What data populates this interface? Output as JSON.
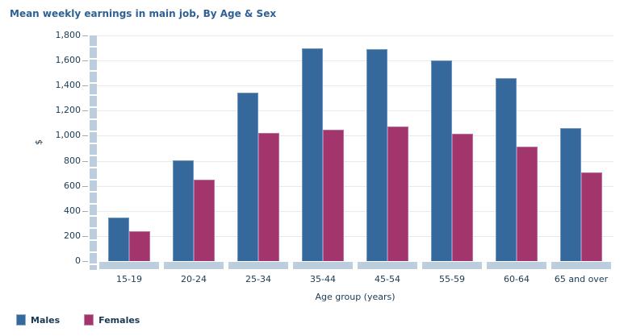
{
  "title": "Mean weekly earnings in main job, By Age & Sex",
  "colors": {
    "male_bar": "#35689b",
    "female_bar": "#a2366c",
    "axis_band": "#bccdde",
    "gridline": "#eaeaea",
    "title_text": "#2e6095",
    "axis_text": "#1b3a52"
  },
  "chart_data": {
    "type": "bar",
    "title": "Mean weekly earnings in main job, By Age & Sex",
    "categories": [
      "15-19",
      "20-24",
      "25-34",
      "35-44",
      "45-54",
      "55-59",
      "60-64",
      "65 and over"
    ],
    "series": [
      {
        "name": "Males",
        "color": "#35689b",
        "values": [
          345,
          805,
          1345,
          1695,
          1690,
          1600,
          1460,
          1060
        ]
      },
      {
        "name": "Females",
        "color": "#a2366c",
        "values": [
          240,
          650,
          1020,
          1050,
          1075,
          1015,
          915,
          705
        ]
      }
    ],
    "xlabel": "Age group (years)",
    "ylabel": "$",
    "ylim": [
      0,
      1800
    ],
    "ytick_step": 200,
    "ytick_labels": [
      "0",
      "200",
      "400",
      "600",
      "800",
      "1,000",
      "1,200",
      "1,400",
      "1,600",
      "1,800"
    ],
    "grid": true,
    "legend_position": "bottom-left"
  },
  "legend": {
    "items": [
      {
        "label": "Males"
      },
      {
        "label": "Females"
      }
    ]
  }
}
